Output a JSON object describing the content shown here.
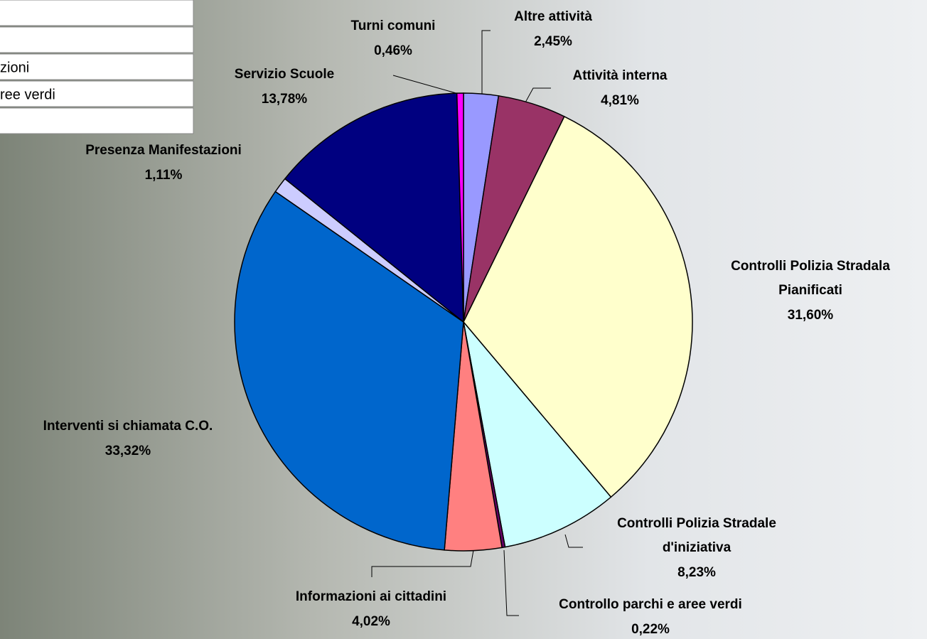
{
  "chart_data": {
    "type": "pie",
    "categories": [
      "Altre attività",
      "Attività interna",
      "Controlli Polizia Stradala Pianificati",
      "Controlli Polizia Stradale d'iniziativa",
      "Controllo parchi e aree verdi",
      "Informazioni ai cittadini",
      "Interventi si chiamata C.O.",
      "Presenza Manifestazioni",
      "Servizio Scuole",
      "Turni comuni"
    ],
    "values": [
      2.45,
      4.81,
      31.6,
      8.23,
      0.22,
      4.02,
      33.32,
      1.11,
      13.78,
      0.46
    ],
    "value_labels": [
      "2,45%",
      "4,81%",
      "31,60%",
      "8,23%",
      "0,22%",
      "4,02%",
      "33,32%",
      "1,11%",
      "13,78%",
      "0,46%"
    ],
    "colors": [
      "#9999ff",
      "#993366",
      "#ffffcc",
      "#ccffff",
      "#660066",
      "#ff8080",
      "#0066cc",
      "#ccccff",
      "#000080",
      "#ff00ff"
    ],
    "legend_fragments": [
      "zioni",
      "ree verdi"
    ]
  }
}
